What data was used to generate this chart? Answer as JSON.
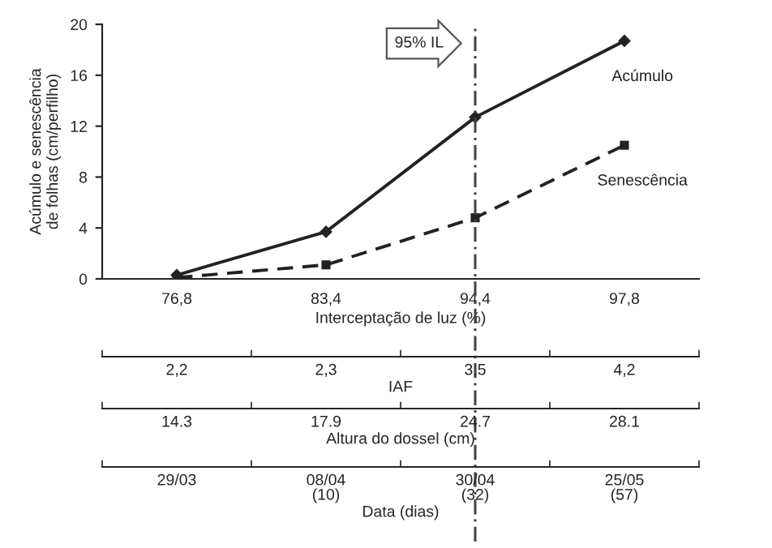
{
  "chart_data": [
    {
      "type": "line",
      "ylabel": "Acúmulo e senescência\nde folhas (cm/perfilho)",
      "xlabel": "Interceptação de luz (%)",
      "categories": [
        "76,8",
        "83,4",
        "94,4",
        "97,8"
      ],
      "series": [
        {
          "name": "Acúmulo",
          "color": "#222222",
          "values": [
            0.3,
            3.7,
            12.7,
            18.7
          ],
          "marker": "diamond",
          "line_style": "solid"
        },
        {
          "name": "Senescência",
          "color": "#222222",
          "values": [
            0.1,
            1.1,
            4.8,
            10.5
          ],
          "marker": "square",
          "line_style": "dashed"
        }
      ],
      "ylim": [
        0,
        20
      ],
      "yticks": [
        0,
        4,
        8,
        12,
        16,
        20
      ],
      "ref_lines": [
        {
          "axis": "x",
          "value": "94,4",
          "label": "95% IL",
          "color": "#444444",
          "line_style": "dashdot"
        }
      ],
      "grid": false,
      "legend": false
    },
    {
      "type": "other",
      "xlabel": "IAF",
      "categories": [
        "2,2",
        "2,3",
        "3,5",
        "4,2"
      ]
    },
    {
      "type": "other",
      "xlabel": "Altura do dossel (cm)",
      "categories": [
        "14.3",
        "17.9",
        "24.7",
        "28.1"
      ]
    },
    {
      "type": "other",
      "xlabel": "Data (dias)",
      "categories": [
        "29/03",
        "08/04\n(10)",
        "30/04\n(32)",
        "25/05\n(57)"
      ]
    }
  ]
}
